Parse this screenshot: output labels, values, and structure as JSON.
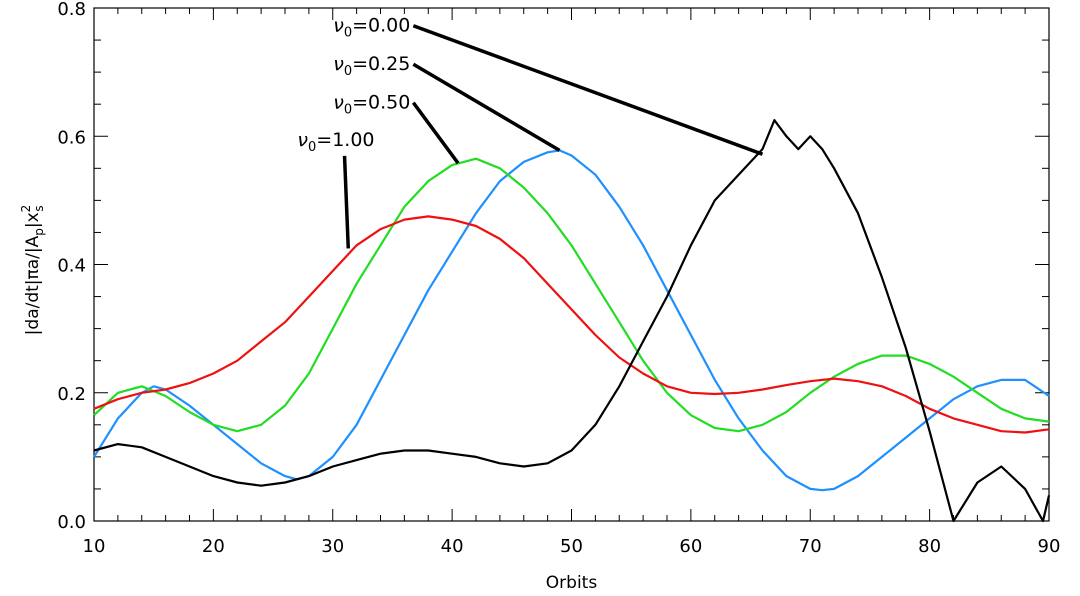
{
  "chart_data": {
    "type": "line",
    "xlabel": "Orbits",
    "ylabel": "|da/dt|πa/|A_p|x_s^2",
    "ylabel_parts": {
      "main": "|da/dt|πa/|A",
      "sub1": "p",
      "mid": "|x",
      "sup": "2",
      "sub2": "s"
    },
    "xlim": [
      10,
      90
    ],
    "ylim": [
      0,
      0.8
    ],
    "xticks": [
      10,
      20,
      30,
      40,
      50,
      60,
      70,
      80,
      90
    ],
    "xtick_labels": [
      "10",
      "20",
      "30",
      "40",
      "50",
      "60",
      "70",
      "80",
      "90"
    ],
    "yticks": [
      0.0,
      0.2,
      0.4,
      0.6,
      0.8
    ],
    "ytick_labels": [
      "0.0",
      "0.2",
      "0.4",
      "0.6",
      "0.8"
    ],
    "grid": false,
    "series": [
      {
        "name": "ν0=0.00",
        "label_parts": {
          "greek": "ν",
          "sub": "0",
          "value": "=0.00"
        },
        "color": "#000000",
        "x": [
          10,
          12,
          14,
          16,
          18,
          20,
          22,
          24,
          26,
          28,
          30,
          32,
          34,
          36,
          38,
          40,
          42,
          44,
          46,
          48,
          50,
          52,
          54,
          56,
          58,
          60,
          62,
          64,
          66,
          67,
          68,
          69,
          70,
          71,
          72,
          74,
          76,
          78,
          80,
          82,
          84,
          86,
          88,
          89.5,
          90
        ],
        "values": [
          0.11,
          0.12,
          0.115,
          0.1,
          0.085,
          0.07,
          0.06,
          0.055,
          0.06,
          0.07,
          0.085,
          0.095,
          0.105,
          0.11,
          0.11,
          0.105,
          0.1,
          0.09,
          0.085,
          0.09,
          0.11,
          0.15,
          0.21,
          0.28,
          0.35,
          0.43,
          0.5,
          0.54,
          0.58,
          0.625,
          0.6,
          0.58,
          0.6,
          0.58,
          0.55,
          0.48,
          0.38,
          0.27,
          0.14,
          0.0,
          0.06,
          0.085,
          0.05,
          0.0,
          0.04
        ]
      },
      {
        "name": "ν0=0.25",
        "label_parts": {
          "greek": "ν",
          "sub": "0",
          "value": "=0.25"
        },
        "color": "#1e90ff",
        "x": [
          10,
          12,
          14,
          15,
          16,
          18,
          20,
          22,
          24,
          26,
          27,
          28,
          30,
          32,
          34,
          36,
          38,
          40,
          42,
          44,
          46,
          48,
          49,
          50,
          52,
          54,
          56,
          58,
          60,
          62,
          64,
          66,
          68,
          70,
          71,
          72,
          74,
          76,
          78,
          80,
          82,
          84,
          86,
          88,
          90
        ],
        "values": [
          0.1,
          0.16,
          0.2,
          0.21,
          0.205,
          0.18,
          0.15,
          0.12,
          0.09,
          0.07,
          0.065,
          0.07,
          0.1,
          0.15,
          0.22,
          0.29,
          0.36,
          0.42,
          0.48,
          0.53,
          0.56,
          0.575,
          0.578,
          0.57,
          0.54,
          0.49,
          0.43,
          0.36,
          0.29,
          0.22,
          0.16,
          0.11,
          0.07,
          0.05,
          0.048,
          0.05,
          0.07,
          0.1,
          0.13,
          0.16,
          0.19,
          0.21,
          0.22,
          0.22,
          0.195
        ]
      },
      {
        "name": "ν0=0.50",
        "label_parts": {
          "greek": "ν",
          "sub": "0",
          "value": "=0.50"
        },
        "color": "#22dd22",
        "x": [
          10,
          12,
          14,
          16,
          18,
          20,
          22,
          24,
          26,
          28,
          30,
          32,
          34,
          36,
          38,
          40,
          42,
          44,
          46,
          48,
          50,
          52,
          54,
          56,
          58,
          60,
          62,
          64,
          66,
          68,
          70,
          72,
          74,
          76,
          78,
          80,
          82,
          84,
          86,
          88,
          90
        ],
        "values": [
          0.165,
          0.2,
          0.21,
          0.195,
          0.17,
          0.15,
          0.14,
          0.15,
          0.18,
          0.23,
          0.3,
          0.37,
          0.43,
          0.49,
          0.53,
          0.555,
          0.565,
          0.55,
          0.52,
          0.48,
          0.43,
          0.37,
          0.31,
          0.25,
          0.2,
          0.165,
          0.145,
          0.14,
          0.15,
          0.17,
          0.2,
          0.225,
          0.245,
          0.258,
          0.258,
          0.245,
          0.225,
          0.2,
          0.175,
          0.16,
          0.155
        ]
      },
      {
        "name": "ν0=1.00",
        "label_parts": {
          "greek": "ν",
          "sub": "0",
          "value": "=1.00"
        },
        "color": "#ee1111",
        "x": [
          10,
          12,
          14,
          16,
          18,
          20,
          22,
          24,
          26,
          28,
          30,
          32,
          34,
          36,
          38,
          40,
          42,
          44,
          46,
          48,
          50,
          52,
          54,
          56,
          58,
          60,
          62,
          64,
          66,
          68,
          70,
          72,
          74,
          76,
          78,
          80,
          82,
          84,
          86,
          88,
          90
        ],
        "values": [
          0.175,
          0.19,
          0.2,
          0.205,
          0.215,
          0.23,
          0.25,
          0.28,
          0.31,
          0.35,
          0.39,
          0.43,
          0.455,
          0.47,
          0.475,
          0.47,
          0.46,
          0.44,
          0.41,
          0.37,
          0.33,
          0.29,
          0.255,
          0.23,
          0.21,
          0.2,
          0.198,
          0.2,
          0.205,
          0.212,
          0.218,
          0.222,
          0.218,
          0.21,
          0.195,
          0.175,
          0.16,
          0.15,
          0.14,
          0.138,
          0.143
        ]
      }
    ],
    "annotations": [
      {
        "series": 0,
        "text_anchor": [
          36.5,
          0.763
        ],
        "points_to": [
          66,
          0.572
        ]
      },
      {
        "series": 1,
        "text_anchor": [
          36.5,
          0.703
        ],
        "points_to": [
          49,
          0.578
        ]
      },
      {
        "series": 2,
        "text_anchor": [
          36.5,
          0.643
        ],
        "points_to": [
          40.5,
          0.558
        ]
      },
      {
        "series": 3,
        "text_anchor": [
          33.5,
          0.585
        ],
        "points_to": [
          31.3,
          0.425
        ]
      }
    ]
  }
}
